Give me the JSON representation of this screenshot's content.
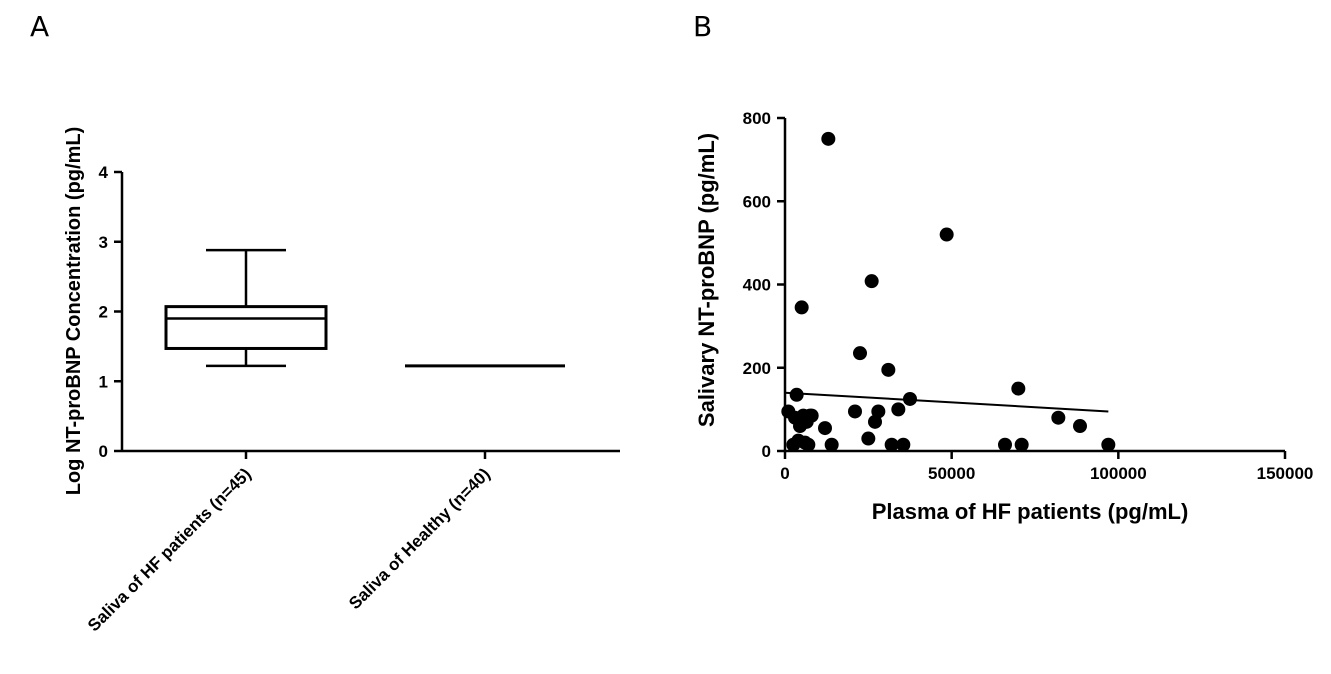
{
  "panels": {
    "a": "A",
    "b": "B"
  },
  "chart_data": [
    {
      "type": "box",
      "ylabel": "Log NT-proBNP Concentration (pg/mL)",
      "ylim": [
        0,
        4
      ],
      "yticks": [
        "0",
        "1",
        "2",
        "3",
        "4"
      ],
      "categories": [
        "Saliva of HF patients (n=45)",
        "Saliva of Healthy (n=40)"
      ],
      "boxes": [
        {
          "min": 1.22,
          "q1": 1.47,
          "median": 1.9,
          "q3": 2.07,
          "max": 2.88
        },
        {
          "min": 1.22,
          "q1": 1.22,
          "median": 1.22,
          "q3": 1.22,
          "max": 1.22
        }
      ],
      "grid": false
    },
    {
      "type": "scatter",
      "xlabel": "Plasma of HF patients (pg/mL)",
      "ylabel": "Salivary NT-proBNP (pg/mL)",
      "xlim": [
        0,
        150000
      ],
      "ylim": [
        0,
        800
      ],
      "xticks": [
        "0",
        "50000",
        "100000",
        "150000"
      ],
      "yticks": [
        "0",
        "200",
        "400",
        "600",
        "800"
      ],
      "points": [
        [
          1000,
          95
        ],
        [
          2500,
          15
        ],
        [
          3500,
          135
        ],
        [
          3000,
          80
        ],
        [
          4000,
          25
        ],
        [
          4500,
          60
        ],
        [
          5000,
          345
        ],
        [
          5500,
          85
        ],
        [
          6000,
          20
        ],
        [
          6500,
          70
        ],
        [
          7000,
          15
        ],
        [
          7500,
          85
        ],
        [
          8000,
          85
        ],
        [
          12000,
          55
        ],
        [
          13000,
          750
        ],
        [
          14000,
          15
        ],
        [
          21000,
          95
        ],
        [
          22500,
          235
        ],
        [
          25000,
          30
        ],
        [
          26000,
          408
        ],
        [
          27000,
          70
        ],
        [
          28000,
          95
        ],
        [
          31000,
          195
        ],
        [
          32000,
          15
        ],
        [
          34000,
          100
        ],
        [
          35500,
          15
        ],
        [
          37500,
          125
        ],
        [
          48500,
          520
        ],
        [
          66000,
          15
        ],
        [
          70000,
          150
        ],
        [
          71000,
          15
        ],
        [
          82000,
          80
        ],
        [
          88500,
          60
        ],
        [
          97000,
          15
        ]
      ],
      "trendline": {
        "x": [
          0,
          97000
        ],
        "y": [
          140,
          95
        ]
      },
      "grid": false
    }
  ]
}
